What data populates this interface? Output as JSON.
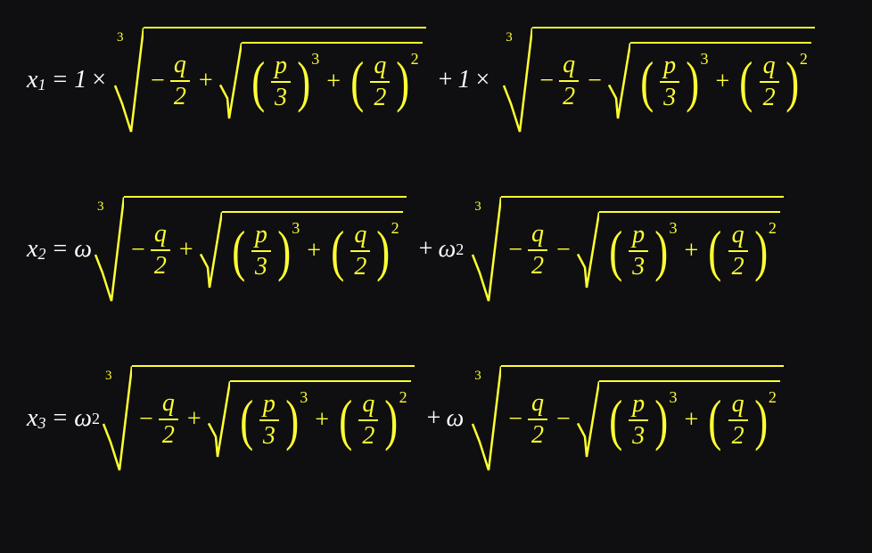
{
  "colors": {
    "bg": "#0f0f11",
    "text": "#ffffff",
    "math": "#ffff33"
  },
  "font": {
    "family": "Cambria Math",
    "base_size": 28,
    "sub_size": 18,
    "index_size": 15
  },
  "common": {
    "q": "q",
    "p": "p",
    "two": "2",
    "three": "3",
    "cube_index": "3",
    "pow3": "3",
    "pow2": "2",
    "plus": "+",
    "minus": "−",
    "times": "×",
    "equals": "="
  },
  "rows": [
    {
      "var": "x",
      "sub": "1",
      "coef1": "1",
      "coef1_pow": "",
      "sep": "×",
      "coef2": "1",
      "coef2_pow": "",
      "inner_sign1": "+",
      "inner_sign2": "−"
    },
    {
      "var": "x",
      "sub": "2",
      "coef1": "ω",
      "coef1_pow": "",
      "sep": "",
      "coef2": "ω",
      "coef2_pow": "2",
      "inner_sign1": "+",
      "inner_sign2": "−"
    },
    {
      "var": "x",
      "sub": "3",
      "coef1": "ω",
      "coef1_pow": "2",
      "sep": "",
      "coef2": "ω",
      "coef2_pow": "",
      "inner_sign1": "+",
      "inner_sign2": "−"
    }
  ]
}
